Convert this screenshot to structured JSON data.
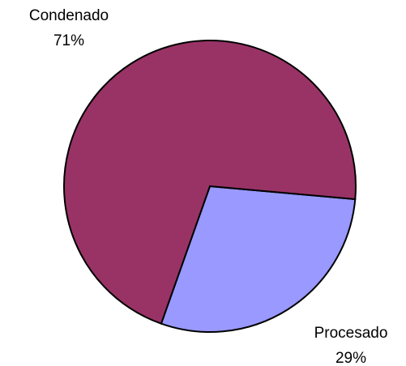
{
  "chart_data": {
    "type": "pie",
    "categories": [
      "Condenado",
      "Procesado"
    ],
    "values": [
      71,
      29
    ],
    "value_labels": [
      "71%",
      "29%"
    ],
    "colors": [
      "#993366",
      "#9999ff"
    ]
  }
}
